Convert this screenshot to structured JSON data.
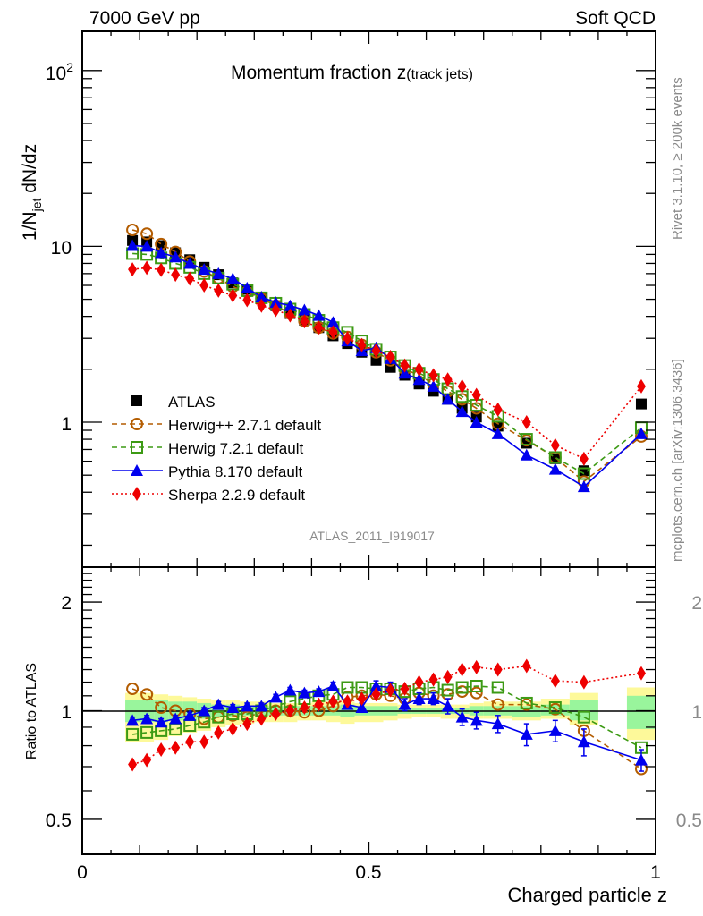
{
  "chart_data": [
    {
      "type": "line",
      "panel": "main",
      "title": "Momentum fraction",
      "title_symbol": "z",
      "title_suffix": "(track jets)",
      "header_left": "7000 GeV pp",
      "header_right": "Soft QCD",
      "ylabel": "1/N_jet dN/dz",
      "ylabel_parts": {
        "a": "1/N",
        "sub": "jet",
        "b": " dN/dz"
      },
      "yscale": "log",
      "ylim": [
        0.15,
        167
      ],
      "xlim": [
        0,
        1
      ],
      "ytick_labels": [
        {
          "value": 1,
          "label": "1"
        },
        {
          "value": 10,
          "label": "10"
        },
        {
          "value": 100,
          "label": "10",
          "sup": "2"
        }
      ],
      "analysis_id": "ATLAS_2011_I919017",
      "side_text_top": "Rivet 3.1.10, ≥ 200k events",
      "side_text_bottom": "mcplots.cern.ch [arXiv:1306.3436]",
      "legend_position": "bottom-left",
      "x": [
        0.0875,
        0.1125,
        0.1375,
        0.1625,
        0.1875,
        0.2125,
        0.2375,
        0.2625,
        0.2875,
        0.3125,
        0.3375,
        0.3625,
        0.3875,
        0.4125,
        0.4375,
        0.4625,
        0.4875,
        0.5125,
        0.5375,
        0.5625,
        0.5875,
        0.6125,
        0.6375,
        0.6625,
        0.6875,
        0.725,
        0.775,
        0.825,
        0.875,
        0.975
      ],
      "series": [
        {
          "name": "ATLAS",
          "style": "data",
          "color": "#000000",
          "marker": "square-filled",
          "values": [
            10.8,
            10.6,
            10.1,
            9.2,
            8.4,
            7.6,
            6.9,
            6.2,
            5.7,
            5.1,
            4.6,
            4.15,
            3.8,
            3.45,
            3.1,
            2.8,
            2.5,
            2.25,
            2.05,
            1.85,
            1.65,
            1.5,
            1.35,
            1.2,
            1.07,
            0.95,
            0.76,
            0.62,
            0.53,
            1.27
          ]
        },
        {
          "name": "Herwig++ 2.7.1 default",
          "style": "dashed",
          "color": "#b35c00",
          "marker": "circle-open",
          "values": [
            12.4,
            11.8,
            10.3,
            9.3,
            8.2,
            7.2,
            6.6,
            5.9,
            5.5,
            5.05,
            4.6,
            4.15,
            3.75,
            3.45,
            3.2,
            3.05,
            2.75,
            2.5,
            2.25,
            2.0,
            1.85,
            1.65,
            1.5,
            1.35,
            1.2,
            0.98,
            0.79,
            0.63,
            0.46,
            0.83
          ]
        },
        {
          "name": "Herwig 7.2.1 default",
          "style": "dashed",
          "color": "#3c9a14",
          "marker": "square-open",
          "values": [
            9.1,
            9.0,
            8.6,
            8.0,
            7.6,
            7.0,
            6.6,
            6.1,
            5.6,
            5.1,
            4.75,
            4.4,
            4.1,
            3.8,
            3.45,
            3.25,
            2.9,
            2.6,
            2.35,
            2.1,
            1.9,
            1.75,
            1.55,
            1.4,
            1.25,
            1.08,
            0.8,
            0.63,
            0.51,
            0.93
          ]
        },
        {
          "name": "Pythia 8.170 default",
          "style": "solid",
          "color": "#0000ee",
          "marker": "triangle-filled",
          "values": [
            10.1,
            10.0,
            9.2,
            8.7,
            8.0,
            7.4,
            7.0,
            6.55,
            5.8,
            5.15,
            4.8,
            4.6,
            4.35,
            4.05,
            3.7,
            2.9,
            2.55,
            2.65,
            2.3,
            1.9,
            1.75,
            1.6,
            1.35,
            1.15,
            1.0,
            0.86,
            0.65,
            0.54,
            0.43,
            0.86
          ]
        },
        {
          "name": "Sherpa 2.2.9 default",
          "style": "dotted",
          "color": "#ee0000",
          "marker": "diamond-filled",
          "values": [
            7.4,
            7.55,
            7.35,
            6.9,
            6.55,
            6.0,
            5.6,
            5.25,
            4.95,
            4.6,
            4.35,
            4.05,
            3.75,
            3.45,
            3.25,
            3.0,
            2.75,
            2.55,
            2.35,
            2.1,
            2.0,
            1.85,
            1.75,
            1.6,
            1.43,
            1.18,
            1.0,
            0.74,
            0.62,
            1.6
          ]
        }
      ]
    },
    {
      "type": "line",
      "panel": "ratio",
      "ylabel": "Ratio to ATLAS",
      "xlabel": "Charged particle z",
      "yscale": "log",
      "ylim": [
        0.4,
        2.5
      ],
      "xlim": [
        0,
        1
      ],
      "ytick_labels": [
        {
          "value": 0.5,
          "label": "0.5"
        },
        {
          "value": 1,
          "label": "1"
        },
        {
          "value": 2,
          "label": "2"
        }
      ],
      "xtick_labels": [
        {
          "value": 0,
          "label": "0"
        },
        {
          "value": 0.5,
          "label": "0.5"
        },
        {
          "value": 1,
          "label": "1"
        }
      ],
      "band_colors": {
        "inner": "#99f59c",
        "outer": "#fdf99a"
      },
      "bands": {
        "x_edges": [
          0.075,
          0.1,
          0.125,
          0.15,
          0.175,
          0.2,
          0.225,
          0.25,
          0.275,
          0.3,
          0.325,
          0.35,
          0.375,
          0.4,
          0.425,
          0.45,
          0.475,
          0.5,
          0.525,
          0.55,
          0.575,
          0.6,
          0.625,
          0.65,
          0.675,
          0.7,
          0.75,
          0.8,
          0.85,
          0.9,
          0.95,
          1.0
        ],
        "inner_lo": [
          0.93,
          0.93,
          0.93,
          0.94,
          0.94,
          0.95,
          0.96,
          0.96,
          0.97,
          0.97,
          0.97,
          0.97,
          0.97,
          0.97,
          0.97,
          0.96,
          0.97,
          0.97,
          0.97,
          0.98,
          0.98,
          0.98,
          0.98,
          0.98,
          0.97,
          0.97,
          0.96,
          0.97,
          0.94,
          null,
          0.89
        ],
        "inner_hi": [
          1.07,
          1.07,
          1.07,
          1.06,
          1.06,
          1.05,
          1.04,
          1.04,
          1.03,
          1.03,
          1.03,
          1.03,
          1.03,
          1.03,
          1.03,
          1.04,
          1.03,
          1.03,
          1.03,
          1.02,
          1.02,
          1.02,
          1.02,
          1.02,
          1.03,
          1.03,
          1.03,
          1.04,
          1.07,
          null,
          1.1
        ],
        "outer_lo": [
          0.82,
          0.82,
          0.83,
          0.85,
          0.87,
          0.88,
          0.9,
          0.91,
          0.92,
          0.93,
          0.93,
          0.93,
          0.94,
          0.94,
          0.93,
          0.92,
          0.93,
          0.93,
          0.94,
          0.95,
          0.96,
          0.96,
          0.95,
          0.95,
          0.95,
          0.95,
          0.94,
          0.95,
          0.91,
          null,
          0.83
        ],
        "outer_hi": [
          1.12,
          1.12,
          1.11,
          1.1,
          1.09,
          1.08,
          1.07,
          1.07,
          1.06,
          1.06,
          1.05,
          1.05,
          1.05,
          1.06,
          1.06,
          1.06,
          1.05,
          1.05,
          1.05,
          1.04,
          1.04,
          1.04,
          1.04,
          1.04,
          1.05,
          1.06,
          1.06,
          1.08,
          1.12,
          null,
          1.16
        ]
      },
      "x": [
        0.0875,
        0.1125,
        0.1375,
        0.1625,
        0.1875,
        0.2125,
        0.2375,
        0.2625,
        0.2875,
        0.3125,
        0.3375,
        0.3625,
        0.3875,
        0.4125,
        0.4375,
        0.4625,
        0.4875,
        0.5125,
        0.5375,
        0.5625,
        0.5875,
        0.6125,
        0.6375,
        0.6625,
        0.6875,
        0.725,
        0.775,
        0.825,
        0.875,
        0.975
      ],
      "series": [
        {
          "name": "Herwig++ 2.7.1 default",
          "color": "#b35c00",
          "style": "dashed",
          "marker": "circle-open",
          "values": [
            1.15,
            1.11,
            1.02,
            1.0,
            0.98,
            0.95,
            0.96,
            0.97,
            0.96,
            0.99,
            1.0,
            1.0,
            0.99,
            1.0,
            1.03,
            1.09,
            1.1,
            1.11,
            1.1,
            1.08,
            1.12,
            1.1,
            1.11,
            1.13,
            1.12,
            1.04,
            1.04,
            1.01,
            0.88,
            0.69
          ]
        },
        {
          "name": "Herwig 7.2.1 default",
          "color": "#3c9a14",
          "style": "dashed",
          "marker": "square-open",
          "values": [
            0.86,
            0.87,
            0.88,
            0.89,
            0.91,
            0.93,
            0.96,
            0.98,
            0.98,
            1.0,
            1.03,
            1.06,
            1.08,
            1.1,
            1.11,
            1.16,
            1.16,
            1.15,
            1.15,
            1.13,
            1.15,
            1.16,
            1.14,
            1.16,
            1.17,
            1.16,
            1.05,
            1.02,
            0.96,
            0.79
          ]
        },
        {
          "name": "Pythia 8.170 default",
          "color": "#0000ee",
          "style": "solid",
          "marker": "triangle-filled",
          "values": [
            0.94,
            0.95,
            0.93,
            0.95,
            0.97,
            1.0,
            1.04,
            1.02,
            1.03,
            1.03,
            1.09,
            1.14,
            1.12,
            1.13,
            1.17,
            1.04,
            1.02,
            1.17,
            1.16,
            1.04,
            1.08,
            1.08,
            1.03,
            0.96,
            0.94,
            0.92,
            0.86,
            0.88,
            0.82,
            0.73
          ],
          "err": [
            0.02,
            0.02,
            0.02,
            0.02,
            0.02,
            0.02,
            0.02,
            0.02,
            0.02,
            0.02,
            0.02,
            0.02,
            0.02,
            0.02,
            0.03,
            0.03,
            0.03,
            0.04,
            0.04,
            0.04,
            0.04,
            0.04,
            0.05,
            0.05,
            0.05,
            0.05,
            0.06,
            0.06,
            0.07,
            0.05
          ]
        },
        {
          "name": "Sherpa 2.2.9 default",
          "color": "#ee0000",
          "style": "dotted",
          "marker": "diamond-filled",
          "values": [
            0.71,
            0.73,
            0.78,
            0.79,
            0.82,
            0.82,
            0.87,
            0.89,
            0.92,
            0.95,
            0.98,
            1.0,
            1.02,
            1.04,
            1.06,
            1.06,
            1.08,
            1.11,
            1.14,
            1.15,
            1.2,
            1.22,
            1.24,
            1.3,
            1.32,
            1.3,
            1.33,
            1.21,
            1.2,
            1.27
          ]
        }
      ]
    }
  ]
}
